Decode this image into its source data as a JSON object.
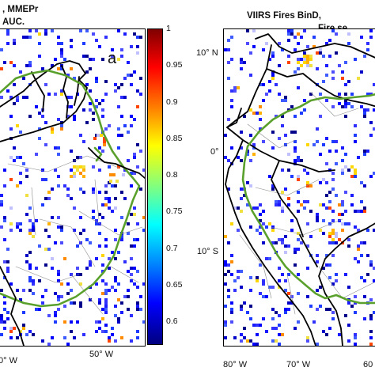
{
  "panel_left": {
    "title_line1": ", MMEPr",
    "title_line2": "AUC.",
    "panel_letter": "a",
    "x_tick": "50° W",
    "x_tick_partial": "0° W"
  },
  "panel_right": {
    "title_line1": "VIIRS Fires BinD,",
    "title_line2": "Fire se",
    "y_ticks": [
      "10° N",
      "0°",
      "10° S"
    ],
    "x_ticks": [
      "80° W",
      "70° W",
      "60"
    ]
  },
  "colorbar": {
    "ticks": [
      "1",
      "0.95",
      "0.9",
      "0.85",
      "0.8",
      "0.75",
      "0.7",
      "0.65",
      "0.6"
    ],
    "colors": [
      "#7f0000",
      "#ff0000",
      "#ff8000",
      "#ffff00",
      "#80ff80",
      "#00ffff",
      "#0080ff",
      "#0000ff",
      "#00007f"
    ]
  },
  "colors": {
    "river": "#5aa02c",
    "border": "#000000",
    "states": "#777777"
  }
}
